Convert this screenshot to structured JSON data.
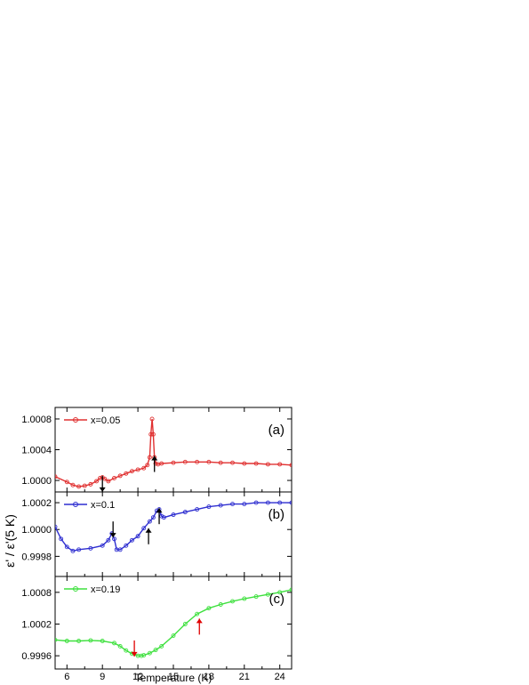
{
  "chart_data": {
    "type": "line",
    "xlabel": "Temperature (K)",
    "ylabel": "ε' / ε'(5 K)",
    "xlim": [
      5,
      25
    ],
    "x_ticks": [
      "6",
      "9",
      "12",
      "15",
      "18",
      "21",
      "24"
    ],
    "panels": [
      {
        "id": "a",
        "label": "(a)",
        "ylim": [
          0.99985,
          1.00095
        ],
        "y_ticks": [
          "1.0000",
          "1.0004",
          "1.0008"
        ],
        "legend": "x=0.05",
        "color": "#e03030",
        "x": [
          5.0,
          6.0,
          6.5,
          7.0,
          7.5,
          8.0,
          8.5,
          8.8,
          9.0,
          9.2,
          9.5,
          10.0,
          10.5,
          11.0,
          11.5,
          12.0,
          12.5,
          12.8,
          13.0,
          13.1,
          13.2,
          13.3,
          13.4,
          13.5,
          13.7,
          14.0,
          15.0,
          16.0,
          17.0,
          18.0,
          19.0,
          20.0,
          21.0,
          22.0,
          23.0,
          24.0,
          25.0
        ],
        "values": [
          1.00005,
          0.99998,
          0.99994,
          0.99992,
          0.99993,
          0.99995,
          0.99999,
          1.00003,
          1.00004,
          1.00002,
          0.99999,
          1.00003,
          1.00006,
          1.00009,
          1.00012,
          1.00014,
          1.00016,
          1.0002,
          1.0003,
          1.0006,
          1.0008,
          1.0006,
          1.0003,
          1.00022,
          1.00021,
          1.00022,
          1.00023,
          1.00024,
          1.00024,
          1.00024,
          1.00023,
          1.00023,
          1.00022,
          1.00022,
          1.00021,
          1.00021,
          1.0002
        ],
        "arrows": [
          {
            "x": 9.0,
            "y": 1.00006,
            "dir": "down",
            "color": "#000000"
          },
          {
            "x": 13.4,
            "y": 1.00011,
            "dir": "up",
            "color": "#000000"
          }
        ]
      },
      {
        "id": "b",
        "label": "(b)",
        "ylim": [
          0.99965,
          1.00028
        ],
        "y_ticks": [
          "0.9998",
          "1.0000",
          "1.0002"
        ],
        "legend": "x=0.1",
        "color": "#2f2fd0",
        "x": [
          5.0,
          5.5,
          6.0,
          6.5,
          7.0,
          8.0,
          9.0,
          9.5,
          9.8,
          10.0,
          10.2,
          10.5,
          11.0,
          11.5,
          12.0,
          12.5,
          13.0,
          13.3,
          13.6,
          13.8,
          14.0,
          14.2,
          15.0,
          16.0,
          17.0,
          18.0,
          19.0,
          20.0,
          21.0,
          22.0,
          23.0,
          24.0,
          25.0
        ],
        "values": [
          1.00002,
          0.99993,
          0.99987,
          0.99984,
          0.99985,
          0.99986,
          0.99988,
          0.99992,
          0.99997,
          0.99993,
          0.99985,
          0.99985,
          0.99988,
          0.99992,
          0.99995,
          1.00001,
          1.00006,
          1.00009,
          1.00014,
          1.00015,
          1.0001,
          1.00009,
          1.00011,
          1.00013,
          1.00015,
          1.00017,
          1.00018,
          1.00019,
          1.00019,
          1.0002,
          1.0002,
          1.0002,
          1.0002
        ],
        "arrows": [
          {
            "x": 9.9,
            "y": 1.00006,
            "dir": "down",
            "color": "#000000"
          },
          {
            "x": 12.9,
            "y": 0.99989,
            "dir": "up",
            "color": "#000000"
          },
          {
            "x": 13.8,
            "y": 1.00004,
            "dir": "up",
            "color": "#000000"
          }
        ]
      },
      {
        "id": "c",
        "label": "(c)",
        "ylim": [
          0.99935,
          1.0011
        ],
        "y_ticks": [
          "0.9996",
          "1.0002",
          "1.0008"
        ],
        "legend": "x=0.19",
        "color": "#3ee03e",
        "x": [
          5.0,
          6.0,
          7.0,
          8.0,
          9.0,
          10.0,
          10.5,
          11.0,
          11.5,
          12.0,
          12.3,
          12.5,
          13.0,
          13.5,
          14.0,
          15.0,
          16.0,
          17.0,
          18.0,
          19.0,
          20.0,
          21.0,
          22.0,
          23.0,
          24.0,
          25.0
        ],
        "values": [
          0.9999,
          0.99988,
          0.99988,
          0.99989,
          0.99988,
          0.99984,
          0.99978,
          0.9997,
          0.99964,
          0.9996,
          0.9996,
          0.99961,
          0.99965,
          0.99971,
          0.99978,
          0.99998,
          1.0002,
          1.00039,
          1.0005,
          1.00057,
          1.00063,
          1.00068,
          1.00072,
          1.00076,
          1.0008,
          1.00085
        ],
        "arrows": [
          {
            "x": 11.7,
            "y": 0.99989,
            "dir": "down",
            "color": "#e00000"
          },
          {
            "x": 17.2,
            "y": 1.0,
            "dir": "up",
            "color": "#e00000"
          }
        ]
      }
    ]
  }
}
